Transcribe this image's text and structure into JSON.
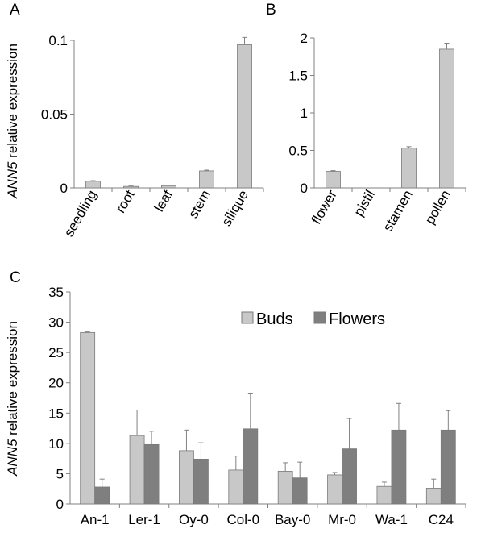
{
  "colors": {
    "buds": "#c8c8c8",
    "flowers": "#7f7f7f",
    "bar_stroke": "#7a7a7a",
    "axis": "#808080",
    "error": "#808080"
  },
  "chart_data": [
    {
      "panel": "A",
      "type": "bar",
      "ylabel_italic": "ANN5",
      "ylabel_rest": " relative expression",
      "categories": [
        "seedling",
        "root",
        "leaf",
        "stem",
        "silique"
      ],
      "values": [
        0.0045,
        0.001,
        0.0015,
        0.0115,
        0.097
      ],
      "errors": [
        0.0004,
        0.0003,
        0.0002,
        0.0005,
        0.005
      ],
      "ylim": [
        0,
        0.1
      ],
      "yticks": [
        0,
        0.05,
        0.1
      ],
      "ytick_labels": [
        "0",
        "0.05",
        "0.1"
      ],
      "grid": false
    },
    {
      "panel": "B",
      "type": "bar",
      "categories": [
        "flower",
        "pistil",
        "stamen",
        "pollen"
      ],
      "values": [
        0.22,
        0.0,
        0.53,
        1.85
      ],
      "errors": [
        0.01,
        0.0,
        0.02,
        0.08
      ],
      "ylim": [
        0,
        2
      ],
      "yticks": [
        0,
        0.5,
        1,
        1.5,
        2
      ],
      "ytick_labels": [
        "0",
        "0.5",
        "1",
        "1.5",
        "2"
      ],
      "grid": false
    },
    {
      "panel": "C",
      "type": "bar",
      "ylabel_italic": "ANN5",
      "ylabel_rest": " relative expression",
      "categories": [
        "An-1",
        "Ler-1",
        "Oy-0",
        "Col-0",
        "Bay-0",
        "Mr-0",
        "Wa-1",
        "C24"
      ],
      "series": [
        {
          "name": "Buds",
          "values": [
            28.3,
            11.3,
            8.8,
            5.6,
            5.4,
            4.8,
            2.9,
            2.6
          ],
          "errors": [
            0.1,
            4.2,
            3.4,
            2.3,
            1.4,
            0.4,
            0.7,
            1.5
          ]
        },
        {
          "name": "Flowers",
          "values": [
            2.8,
            9.8,
            7.4,
            12.4,
            4.3,
            9.1,
            12.2,
            12.2
          ],
          "errors": [
            1.3,
            2.2,
            2.7,
            5.9,
            2.6,
            5.0,
            4.4,
            3.2
          ]
        }
      ],
      "ylim": [
        0,
        35
      ],
      "yticks": [
        0,
        5,
        10,
        15,
        20,
        25,
        30,
        35
      ],
      "ytick_labels": [
        "0",
        "5",
        "10",
        "15",
        "20",
        "25",
        "30",
        "35"
      ],
      "legend": "top-center",
      "grid": false
    }
  ]
}
